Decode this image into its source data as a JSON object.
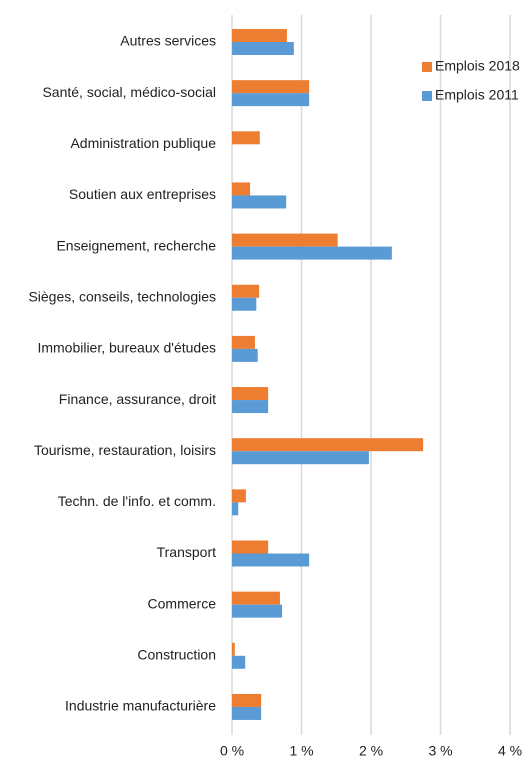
{
  "chart_data": {
    "type": "barh",
    "categories": [
      "Autres services",
      "Santé, social, médico-social",
      "Administration publique",
      "Soutien aux entreprises",
      "Enseignement, recherche",
      "Sièges, conseils, technologies",
      "Immobilier, bureaux d'études",
      "Finance, assurance, droit",
      "Tourisme, restauration, loisirs",
      "Techn. de l'info. et comm.",
      "Transport",
      "Commerce",
      "Construction",
      "Industrie manufacturière"
    ],
    "series": [
      {
        "name": "Emplois 2018",
        "color": "#ed7d31",
        "values": [
          0.79,
          1.11,
          0.4,
          0.26,
          1.52,
          0.39,
          0.33,
          0.52,
          2.75,
          0.2,
          0.52,
          0.69,
          0.04,
          0.42
        ]
      },
      {
        "name": "Emplois 2011",
        "color": "#5b9bd5",
        "values": [
          0.89,
          1.11,
          null,
          0.78,
          2.3,
          0.35,
          0.37,
          0.52,
          1.97,
          0.09,
          1.11,
          0.72,
          0.19,
          0.42
        ]
      }
    ],
    "xlim": [
      0,
      4
    ],
    "xticks": [
      {
        "value": 0,
        "label": "0 %"
      },
      {
        "value": 1,
        "label": "1 %"
      },
      {
        "value": 2,
        "label": "2 %"
      },
      {
        "value": 3,
        "label": "3 %"
      },
      {
        "value": 4,
        "label": "4 %"
      }
    ],
    "grid": true,
    "legend": "top-right"
  }
}
